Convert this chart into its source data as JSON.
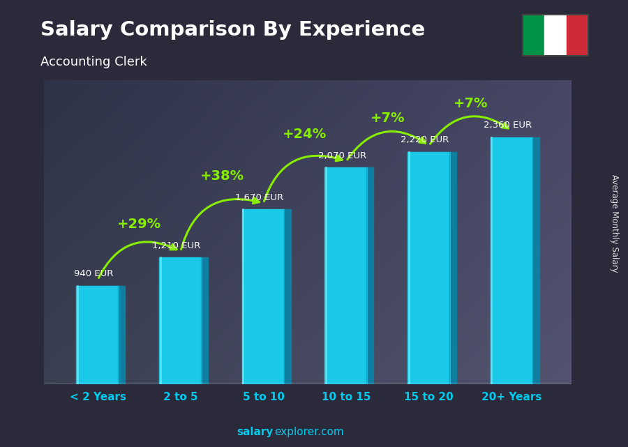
{
  "title": "Salary Comparison By Experience",
  "subtitle": "Accounting Clerk",
  "categories": [
    "< 2 Years",
    "2 to 5",
    "5 to 10",
    "10 to 15",
    "15 to 20",
    "20+ Years"
  ],
  "values": [
    940,
    1210,
    1670,
    2070,
    2220,
    2360
  ],
  "labels": [
    "940 EUR",
    "1,210 EUR",
    "1,670 EUR",
    "2,070 EUR",
    "2,220 EUR",
    "2,360 EUR"
  ],
  "pct_changes": [
    "+29%",
    "+38%",
    "+24%",
    "+7%",
    "+7%"
  ],
  "bar_face_color": "#1ac8e8",
  "bar_right_color": "#0e7fa0",
  "bar_top_color": "#5ae8ff",
  "bar_highlight_color": "#80f8ff",
  "bg_outer_color": "#2a2a3a",
  "title_color": "#ffffff",
  "subtitle_color": "#ffffff",
  "label_color": "#ffffff",
  "pct_color": "#88ee00",
  "xtick_color": "#00ccee",
  "footer_salary_color": "#00ccee",
  "footer_bold": "salary",
  "footer_normal": "explorer.com",
  "side_label": "Average Monthly Salary",
  "ylim": [
    0,
    2900
  ],
  "bar_width": 0.52,
  "side_depth": 0.07,
  "flag_green": "#009246",
  "flag_white": "#ffffff",
  "flag_red": "#ce2b37"
}
